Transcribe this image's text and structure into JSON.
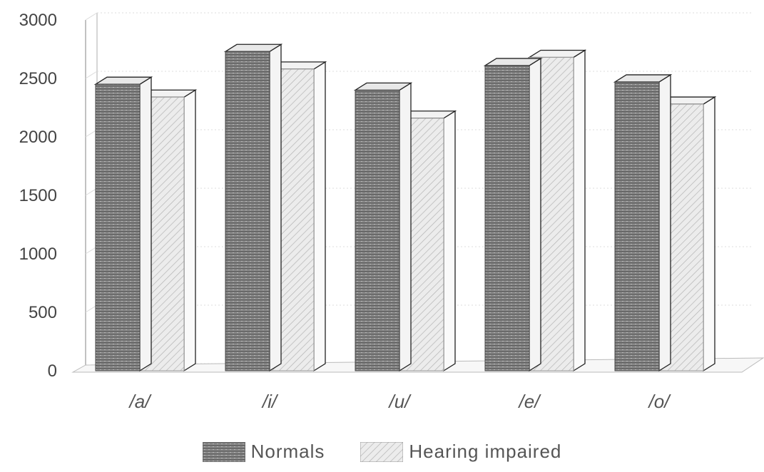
{
  "chart_data": {
    "type": "bar",
    "categories": [
      "/a/",
      "/i/",
      "/u/",
      "/e/",
      "/o/"
    ],
    "series": [
      {
        "name": "Normals",
        "values": [
          2450,
          2730,
          2400,
          2610,
          2470
        ]
      },
      {
        "name": "Hearing impaired",
        "values": [
          2340,
          2580,
          2160,
          2680,
          2280
        ]
      }
    ],
    "yticks": [
      "0",
      "500",
      "1000",
      "1500",
      "2000",
      "2500",
      "3000"
    ],
    "ylim": [
      0,
      3000
    ],
    "grid": true,
    "legend_position": "bottom",
    "colors": {
      "series0": "#7f7f7f",
      "series1": "#e3e3e3"
    }
  }
}
